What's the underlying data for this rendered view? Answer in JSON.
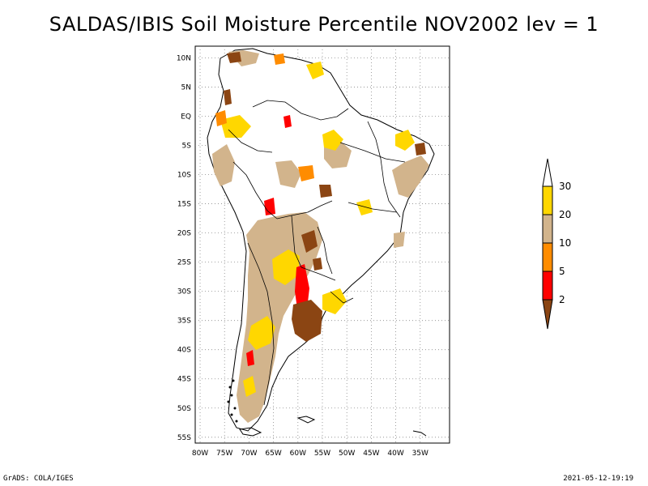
{
  "title": "SALDAS/IBIS Soil Moisture Percentile NOV2002 lev = 1",
  "footer": {
    "left": "GrADS: COLA/IGES",
    "right": "2021-05-12-19:19"
  },
  "map": {
    "lon_range": [
      -81,
      -29
    ],
    "lat_range": [
      -56,
      12
    ],
    "lon_ticks": [
      "80W",
      "75W",
      "70W",
      "65W",
      "60W",
      "55W",
      "50W",
      "45W",
      "40W",
      "35W"
    ],
    "lat_ticks": [
      "10N",
      "5N",
      "EQ",
      "5S",
      "10S",
      "15S",
      "20S",
      "25S",
      "30S",
      "35S",
      "40S",
      "45S",
      "50S",
      "55S"
    ],
    "grid": "dotted"
  },
  "legend": {
    "labels": [
      "2",
      "5",
      "10",
      "20",
      "30"
    ],
    "colors": {
      "below_2": "#8b4513",
      "2_5": "#ff0000",
      "5_10": "#ff8c00",
      "10_20": "#d2b48c",
      "20_30": "#ffd700",
      "above_30": "#ffffff"
    }
  }
}
